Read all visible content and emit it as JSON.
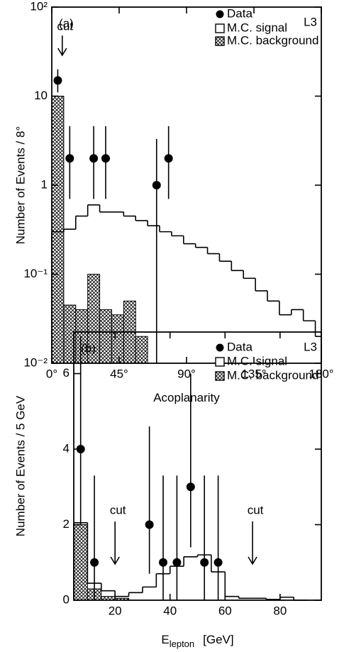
{
  "chart_data": [
    {
      "type": "histogram",
      "panel_label": "(a)",
      "experiment": "L3",
      "xlabel": "Acoplanarity",
      "ylabel": "Number of Events / 8°",
      "log_y": true,
      "xlim": [
        0,
        180
      ],
      "ylim": [
        0.01,
        100
      ],
      "xticks": [
        {
          "value": 0,
          "label": "0°"
        },
        {
          "value": 45,
          "label": "45°"
        },
        {
          "value": 90,
          "label": "90°"
        },
        {
          "value": 135,
          "label": "135°"
        },
        {
          "value": 180,
          "label": "180°"
        }
      ],
      "yticks": [
        {
          "value": 0.01,
          "label": "10⁻²"
        },
        {
          "value": 0.1,
          "label": "10⁻¹"
        },
        1,
        10,
        {
          "value": 100,
          "label": "10²"
        }
      ],
      "legend": "upper right",
      "series": [
        {
          "name": "Data",
          "kind": "points",
          "color": "#000000",
          "x": [
            4,
            12,
            28,
            36,
            70,
            78
          ],
          "values": [
            15,
            2,
            2,
            2,
            1,
            2
          ],
          "errors_low": [
            4,
            1.3,
            1.3,
            1.3,
            1,
            1.3
          ],
          "errors_high": [
            5,
            2.6,
            2.6,
            2.6,
            2.3,
            2.6
          ]
        },
        {
          "name": "M.C. signal",
          "kind": "step",
          "color": "#000000",
          "bins": [
            0,
            8,
            16,
            24,
            32,
            40,
            48,
            56,
            64,
            72,
            80,
            88,
            96,
            104,
            112,
            120,
            128,
            136,
            144,
            152,
            160,
            168,
            176,
            180
          ],
          "values": [
            0.3,
            0.32,
            0.45,
            0.6,
            0.5,
            0.5,
            0.45,
            0.4,
            0.35,
            0.3,
            0.27,
            0.22,
            0.2,
            0.17,
            0.14,
            0.11,
            0.09,
            0.065,
            0.05,
            0.035,
            0.04,
            0.03,
            0.02
          ]
        },
        {
          "name": "M.C. background",
          "kind": "hatched",
          "color": "#000000",
          "bins": [
            0,
            8,
            16,
            24,
            32,
            40,
            48,
            56,
            64
          ],
          "values": [
            10,
            0.045,
            0.04,
            0.1,
            0.04,
            0.035,
            0.05,
            0.02
          ]
        }
      ],
      "annotations": [
        {
          "text": "cut",
          "x": 7
        }
      ]
    },
    {
      "type": "histogram",
      "panel_label": "(b)",
      "experiment": "L3",
      "xlabel": "E",
      "xlabel_sub": "lepton",
      "xlabel_unit": "[GeV]",
      "ylabel": "Number of Events / 5 GeV",
      "log_y": false,
      "xlim": [
        5,
        95
      ],
      "ylim": [
        0,
        7.1
      ],
      "xticks": [
        20,
        40,
        60,
        80
      ],
      "yticks": [
        0,
        2,
        4,
        6
      ],
      "legend": "upper right",
      "series": [
        {
          "name": "Data",
          "kind": "points",
          "color": "#000000",
          "x": [
            7.5,
            12.5,
            32.5,
            37.5,
            42.5,
            47.5,
            52.5,
            57.5
          ],
          "values": [
            4,
            1,
            2,
            1,
            1,
            3,
            1,
            1
          ],
          "errors_low": [
            2,
            1,
            1.3,
            1,
            1,
            1.6,
            1,
            1
          ],
          "errors_high": [
            3,
            2.3,
            2.6,
            2.3,
            2.3,
            3,
            2.3,
            2.3
          ]
        },
        {
          "name": "M.C. signal",
          "kind": "step",
          "color": "#000000",
          "bins": [
            5,
            10,
            15,
            20,
            25,
            30,
            35,
            40,
            45,
            50,
            55,
            60,
            65,
            70,
            75,
            80,
            85,
            90
          ],
          "values": [
            2.05,
            0.45,
            0.25,
            0.1,
            0.2,
            0.35,
            0.7,
            0.9,
            1.15,
            1.2,
            0.75,
            0.1,
            0.05,
            0.05,
            0.02,
            0.08,
            0
          ]
        },
        {
          "name": "M.C. background",
          "kind": "hatched",
          "color": "#000000",
          "bins": [
            5,
            10,
            15,
            20,
            25
          ],
          "values": [
            2,
            0.3,
            0.1,
            0.05
          ]
        }
      ],
      "annotations": [
        {
          "text": "cut",
          "x": 20
        },
        {
          "text": "cut",
          "x": 70
        }
      ]
    }
  ]
}
